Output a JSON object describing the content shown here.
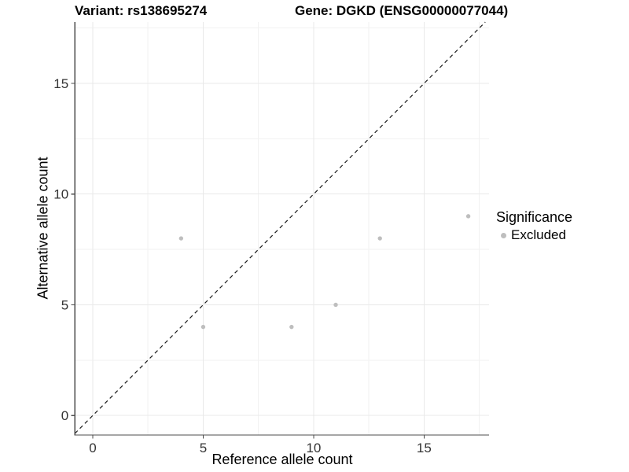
{
  "figure": {
    "background": "#ffffff"
  },
  "chart_data": {
    "type": "scatter",
    "title_left": "Variant: rs138695274",
    "title_right": "Gene: DGKD (ENSG00000077044)",
    "xlabel": "Reference allele count",
    "ylabel": "Alternative allele count",
    "x_ticks": [
      0,
      5,
      10,
      15
    ],
    "y_ticks": [
      0,
      5,
      10,
      15
    ],
    "x_minor_ticks": [
      2.5,
      7.5,
      12.5,
      17.5
    ],
    "y_minor_ticks": [
      2.5,
      7.5,
      12.5,
      17.5
    ],
    "x_range": [
      -0.81,
      17.94
    ],
    "y_range": [
      -0.88,
      17.77
    ],
    "grid": "major+minor",
    "reference_line": {
      "kind": "identity y=x",
      "style": "dashed",
      "color": "#1a1a1a"
    },
    "series": [
      {
        "name": "Excluded",
        "color": "#bebebe",
        "points": [
          [
            4,
            8
          ],
          [
            5,
            4
          ],
          [
            9,
            4
          ],
          [
            11,
            5
          ],
          [
            13,
            8
          ],
          [
            17,
            9
          ]
        ]
      }
    ],
    "legend": {
      "title": "Significance",
      "position": "right",
      "items": [
        {
          "label": "Excluded",
          "color": "#bebebe"
        }
      ]
    },
    "style": {
      "axis_color": "#4d4d4d",
      "major_grid_color": "#e9e9e9",
      "minor_grid_color": "#f2f2f2",
      "tick_label_color": "#333333",
      "point_radius": 2.7,
      "tick_label_size": 17
    }
  }
}
